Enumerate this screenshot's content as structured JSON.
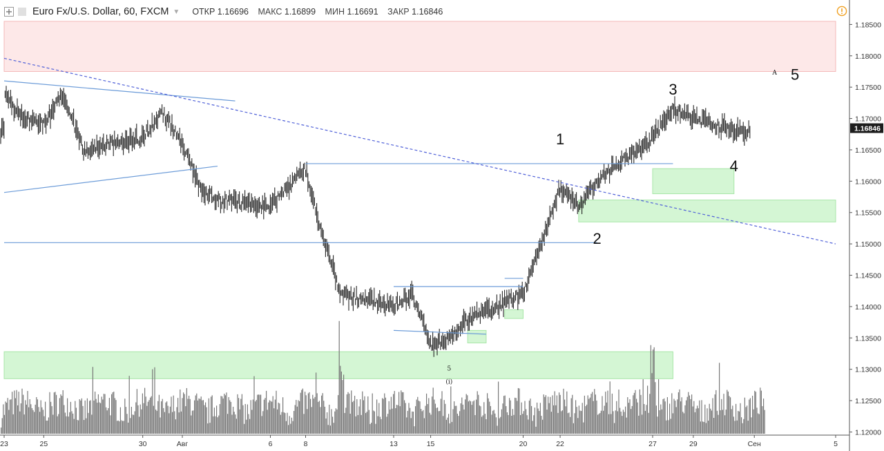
{
  "header": {
    "symbol": "Euro Fx/U.S. Dollar, 60, FXCM",
    "open_label": "ОТКР",
    "open_value": "1.16696",
    "high_label": "МАКС",
    "high_value": "1.16899",
    "low_label": "МИН",
    "low_value": "1.16691",
    "close_label": "ЗАКР",
    "close_value": "1.16846"
  },
  "colors": {
    "price": "#222222",
    "volume": "#777777",
    "resistance_zone": "#fde4e4",
    "resistance_border": "#f4b9b9",
    "support_zone": "#ccf5cc",
    "support_border": "#a8e6a8",
    "trendline": "#6b9bd8",
    "dashed_trend": "#4f60d8",
    "last_price_bg": "#1c1c1c"
  },
  "chart_data": {
    "type": "line",
    "title": "Euro Fx/U.S. Dollar, 60, FXCM",
    "price_axis_ticks": [
      "1.18500",
      "1.18000",
      "1.17500",
      "1.17000",
      "1.16500",
      "1.16000",
      "1.15500",
      "1.15000",
      "1.14500",
      "1.14000",
      "1.13500",
      "1.13000",
      "1.12500",
      "1.12000"
    ],
    "ylim": [
      1.1195,
      1.1889
    ],
    "last_price": "1.16846",
    "time_axis_ticks": [
      "23",
      "25",
      "30",
      "Авг",
      "6",
      "8",
      "13",
      "15",
      "20",
      "22",
      "27",
      "29",
      "Сен",
      "5"
    ],
    "series": [
      {
        "x": [
          "Jul 23",
          "Jul 24",
          "Jul 25",
          "Jul 26",
          "Jul 27",
          "Jul 30",
          "Jul 31",
          "Aug 1",
          "Aug 2",
          "Aug 3",
          "Aug 6",
          "Aug 7",
          "Aug 8",
          "Aug 9",
          "Aug 10",
          "Aug 13",
          "Aug 14",
          "Aug 15",
          "Aug 16",
          "Aug 17",
          "Aug 20",
          "Aug 21",
          "Aug 22",
          "Aug 23",
          "Aug 24",
          "Aug 27",
          "Aug 28",
          "Aug 29",
          "Aug 30",
          "Aug 31"
        ],
        "values": [
          1.1735,
          1.17,
          1.169,
          1.174,
          1.165,
          1.167,
          1.171,
          1.166,
          1.159,
          1.157,
          1.156,
          1.159,
          1.162,
          1.151,
          1.142,
          1.14,
          1.142,
          1.134,
          1.135,
          1.138,
          1.142,
          1.15,
          1.159,
          1.156,
          1.16,
          1.167,
          1.1715,
          1.17,
          1.169,
          1.168
        ]
      }
    ],
    "zones": [
      {
        "kind": "resistance",
        "from_date": "Jul 23",
        "to_date": "Sep 5",
        "low": 1.1775,
        "high": 1.1855
      },
      {
        "kind": "support",
        "from_date": "Jul 23",
        "to_date": "Aug 28",
        "low": 1.1285,
        "high": 1.1328
      },
      {
        "kind": "support",
        "from_date": "Aug 27",
        "to_date": "Aug 31",
        "low": 1.158,
        "high": 1.162
      },
      {
        "kind": "support",
        "from_date": "Aug 23",
        "to_date": "Sep 5",
        "low": 1.1535,
        "high": 1.157
      },
      {
        "kind": "support",
        "from_date": "Aug 19",
        "to_date": "Aug 20",
        "low": 1.1381,
        "high": 1.1395
      },
      {
        "kind": "support",
        "from_date": "Aug 17",
        "to_date": "Aug 18",
        "low": 1.1342,
        "high": 1.1362
      }
    ],
    "trendlines": [
      {
        "style": "solid",
        "from": [
          "Jul 23",
          1.176
        ],
        "to": [
          "Aug 4",
          1.1728
        ]
      },
      {
        "style": "solid",
        "from": [
          "Jul 23",
          1.1582
        ],
        "to": [
          "Aug 3",
          1.1624
        ]
      },
      {
        "style": "solid",
        "from": [
          "Aug 8",
          1.1628
        ],
        "to": [
          "Aug 28",
          1.1628
        ]
      },
      {
        "style": "solid",
        "from": [
          "Jul 23",
          1.1502
        ],
        "to": [
          "Aug 24",
          1.1502
        ]
      },
      {
        "style": "solid",
        "from": [
          "Aug 13",
          1.1432
        ],
        "to": [
          "Aug 20",
          1.1432
        ]
      },
      {
        "style": "solid",
        "from": [
          "Aug 13",
          1.1362
        ],
        "to": [
          "Aug 18",
          1.1356
        ]
      },
      {
        "style": "solid",
        "from": [
          "Aug 19",
          1.1445
        ],
        "to": [
          "Aug 20",
          1.1445
        ]
      },
      {
        "style": "dashed",
        "from": [
          "Jul 23",
          1.1796
        ],
        "to": [
          "Sep 5",
          1.15
        ]
      }
    ],
    "annotations": [
      {
        "text": "1",
        "date": "Aug 22",
        "price": 1.1659
      },
      {
        "text": "2",
        "date": "Aug 24",
        "price": 1.15
      },
      {
        "text": "3",
        "date": "Aug 28",
        "price": 1.1738
      },
      {
        "text": "4",
        "date": "Aug 31",
        "price": 1.1616
      },
      {
        "text": "5",
        "date": "Sep 3",
        "price": 1.1762
      },
      {
        "text": "A",
        "date": "Sep 2",
        "price": 1.177
      },
      {
        "text": "5",
        "date": "Aug 16",
        "price": 1.1298
      },
      {
        "text": "(i)",
        "date": "Aug 16",
        "price": 1.1277
      }
    ],
    "volume": {
      "peak_dates": [
        "Aug 10",
        "Aug 27"
      ]
    }
  }
}
